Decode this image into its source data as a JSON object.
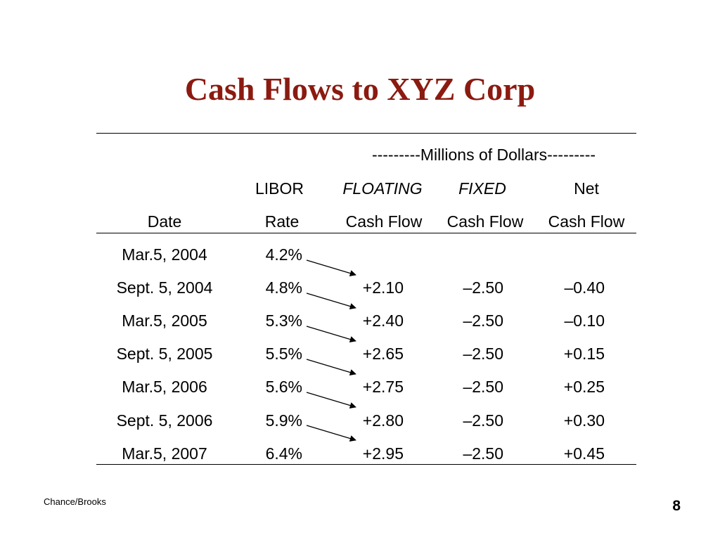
{
  "title": "Cash Flows to XYZ Corp",
  "table": {
    "span_header": "---------Millions of Dollars---------",
    "header_row1": {
      "libor": "LIBOR",
      "floating": "FLOATING",
      "fixed": "FIXED",
      "net": "Net"
    },
    "header_row2": {
      "date": "Date",
      "rate": "Rate",
      "floating": "Cash Flow",
      "fixed": "Cash Flow",
      "net": "Cash Flow"
    },
    "rows": [
      {
        "date": "Mar.5, 2004",
        "rate": "4.2%",
        "floating": "",
        "fixed": "",
        "net": ""
      },
      {
        "date": "Sept. 5, 2004",
        "rate": "4.8%",
        "floating": "+2.10",
        "fixed": "–2.50",
        "net": "–0.40"
      },
      {
        "date": "Mar.5, 2005",
        "rate": "5.3%",
        "floating": "+2.40",
        "fixed": "–2.50",
        "net": "–0.10"
      },
      {
        "date": "Sept. 5, 2005",
        "rate": "5.5%",
        "floating": "+2.65",
        "fixed": "–2.50",
        "net": "+0.15"
      },
      {
        "date": "Mar.5, 2006",
        "rate": "5.6%",
        "floating": "+2.75",
        "fixed": "–2.50",
        "net": "+0.25"
      },
      {
        "date": "Sept. 5, 2006",
        "rate": "5.9%",
        "floating": "+2.80",
        "fixed": "–2.50",
        "net": "+0.30"
      },
      {
        "date": "Mar.5, 2007",
        "rate": "6.4%",
        "floating": "+2.95",
        "fixed": "–2.50",
        "net": "+0.45"
      }
    ]
  },
  "footer": {
    "source": "Chance/Brooks",
    "page": "8"
  }
}
